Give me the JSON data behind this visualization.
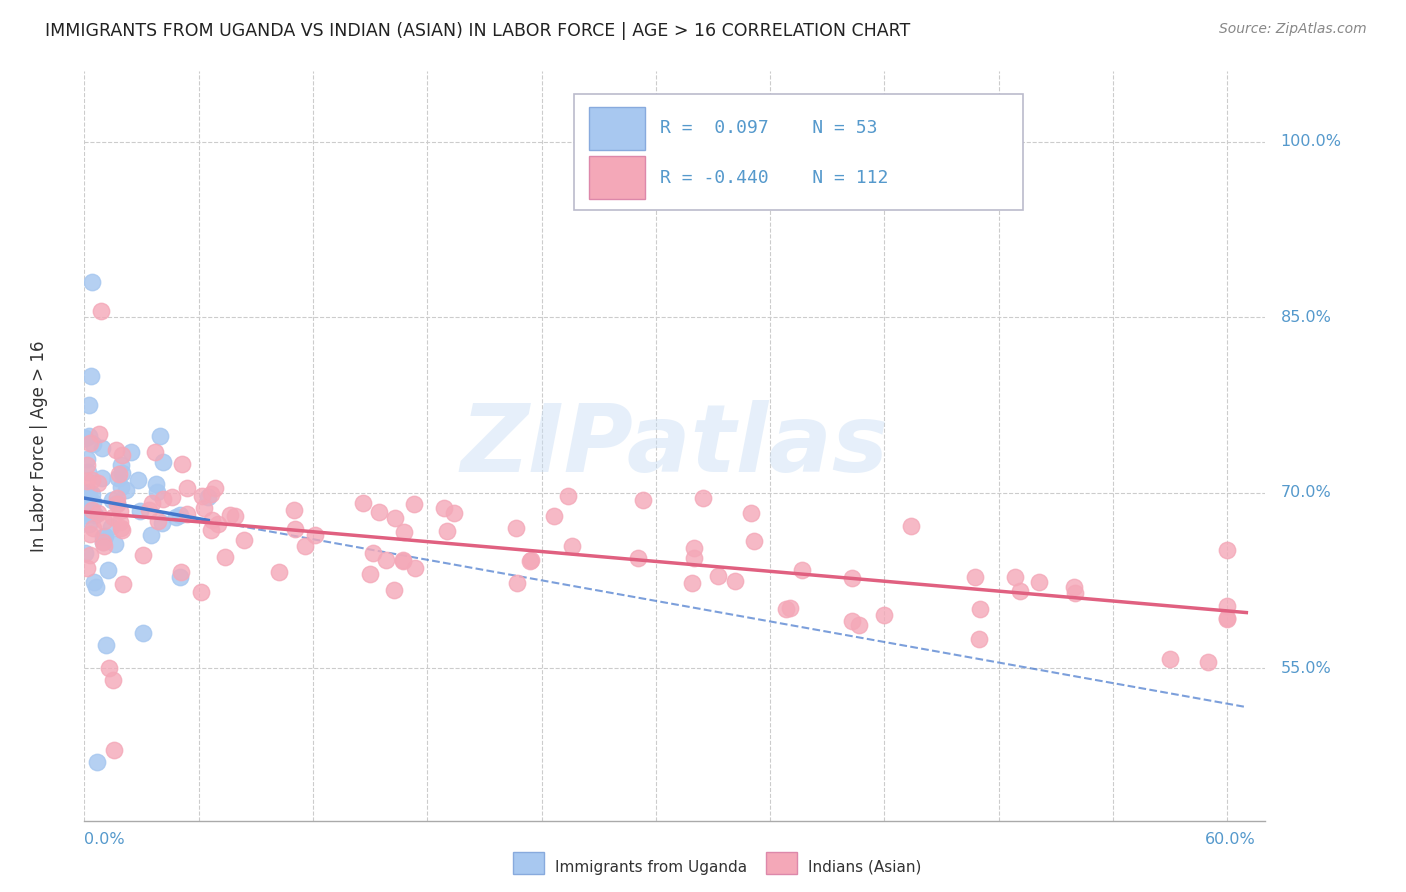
{
  "title": "IMMIGRANTS FROM UGANDA VS INDIAN (ASIAN) IN LABOR FORCE | AGE > 16 CORRELATION CHART",
  "source": "Source: ZipAtlas.com",
  "ylabel": "In Labor Force | Age > 16",
  "watermark": "ZIPatlas",
  "uganda_color": "#a8c8f0",
  "uganda_edge_color": "#88aadd",
  "indian_color": "#f4a8b8",
  "indian_edge_color": "#dd88aa",
  "uganda_line_color": "#4477cc",
  "indian_line_color": "#e06080",
  "background_color": "#ffffff",
  "grid_color": "#cccccc",
  "tick_color": "#5599cc",
  "dark_text": "#222222",
  "source_color": "#888888",
  "xlim": [
    0.0,
    0.62
  ],
  "ylim": [
    0.42,
    1.06
  ],
  "ytick_vals": [
    0.55,
    0.7,
    0.85,
    1.0
  ],
  "ytick_labels": [
    "55.0%",
    "70.0%",
    "85.0%",
    "100.0%"
  ],
  "xtick_vals": [
    0.0,
    0.06,
    0.12,
    0.18,
    0.24,
    0.3,
    0.36,
    0.42,
    0.48,
    0.54,
    0.6
  ],
  "xtick_label_left": "0.0%",
  "xtick_label_right": "60.0%",
  "legend_R1": "R =  0.097",
  "legend_N1": "N = 53",
  "legend_R2": "R = -0.440",
  "legend_N2": "N = 112",
  "bottom_label1": "Immigrants from Uganda",
  "bottom_label2": "Indians (Asian)"
}
